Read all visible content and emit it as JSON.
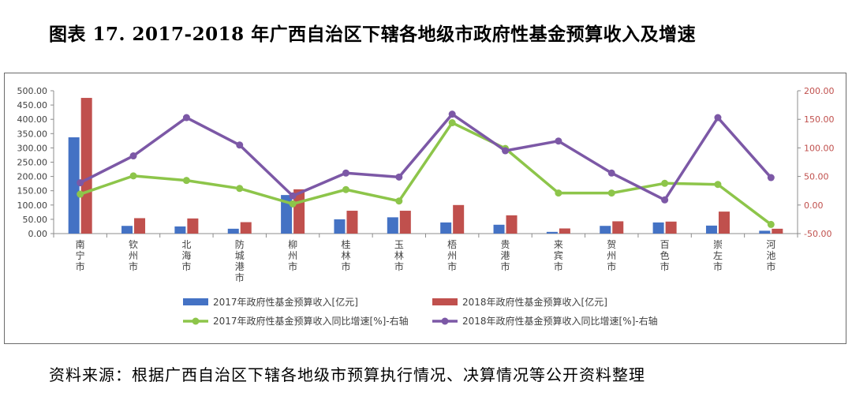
{
  "title": "图表 17.   2017-2018 年广西自治区下辖各地级市政府性基金预算收入及增速",
  "source": "资料来源：根据广西自治区下辖各地级市预算执行情况、决算情况等公开资料整理",
  "chart_data": {
    "type": "bar+line",
    "categories": [
      "南宁市",
      "钦州市",
      "北海市",
      "防城港市",
      "柳州市",
      "桂林市",
      "玉林市",
      "梧州市",
      "贵港市",
      "来宾市",
      "贺州市",
      "百色市",
      "崇左市",
      "河池市"
    ],
    "series": [
      {
        "name": "2017年政府性基金预算收入[亿元]",
        "kind": "bar",
        "axis": "left",
        "color": "#4472C4",
        "values": [
          337,
          27,
          25,
          17,
          135,
          50,
          57,
          39,
          31,
          6,
          27,
          39,
          28,
          10
        ]
      },
      {
        "name": "2018年政府性基金预算收入[亿元]",
        "kind": "bar",
        "axis": "left",
        "color": "#C0504D",
        "values": [
          475,
          54,
          53,
          40,
          155,
          80,
          80,
          100,
          64,
          18,
          43,
          42,
          77,
          17
        ]
      },
      {
        "name": "2017年政府性基金预算收入同比增速[%]-右轴",
        "kind": "line",
        "axis": "right",
        "color": "#8DC54A",
        "values": [
          19,
          51,
          43,
          29,
          2,
          27,
          7,
          144,
          99,
          21,
          21,
          38,
          36,
          -34
        ]
      },
      {
        "name": "2018年政府性基金预算收入同比增速[%]-右轴",
        "kind": "line",
        "axis": "right",
        "color": "#7C58A6",
        "values": [
          39,
          86,
          153,
          105,
          16,
          56,
          49,
          159,
          95,
          112,
          56,
          9,
          153,
          48
        ]
      }
    ],
    "left_axis": {
      "min": 0,
      "max": 500,
      "ticks": [
        "0.00",
        "50.00",
        "100.00",
        "150.00",
        "200.00",
        "250.00",
        "300.00",
        "350.00",
        "400.00",
        "450.00",
        "500.00"
      ]
    },
    "right_axis": {
      "min": -50,
      "max": 200,
      "ticks": [
        "-50.00",
        "0.00",
        "50.00",
        "100.00",
        "150.00",
        "200.00"
      ],
      "color": "#C0504D"
    },
    "legend_position": "bottom",
    "grid": false
  }
}
